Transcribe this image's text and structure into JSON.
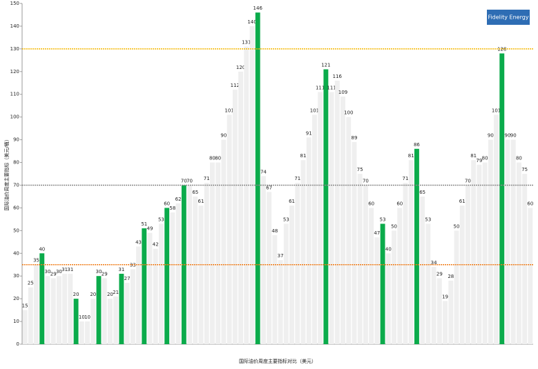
{
  "chart_data": {
    "type": "bar",
    "x_label": "国际油价周度主要指标对比（美元）",
    "y_label": "国际油价周度主要指标（美元/桶）",
    "logo": "Fidelity Energy",
    "ylim": [
      0,
      150
    ],
    "yticks": [
      0,
      10,
      20,
      30,
      40,
      50,
      60,
      70,
      80,
      90,
      100,
      110,
      120,
      130,
      140,
      150
    ],
    "reference_lines": [
      {
        "value": 35,
        "color": "#f07d1a"
      },
      {
        "value": 70,
        "color": "#8a8a8a"
      },
      {
        "value": 130,
        "color": "#f5b800"
      }
    ],
    "categories": [
      null,
      null,
      null,
      null,
      null,
      null,
      null,
      null,
      null,
      null,
      null,
      null,
      null,
      null,
      null,
      null,
      null,
      null,
      null,
      null,
      null,
      null,
      null,
      null,
      null,
      null,
      null,
      null,
      null,
      null,
      null,
      null,
      null,
      null,
      null,
      null,
      null,
      null,
      null,
      null,
      null,
      null,
      null,
      null,
      null,
      null,
      null,
      null,
      null,
      null,
      null,
      null,
      null,
      null,
      null,
      null,
      null,
      null,
      null,
      null,
      null,
      null,
      null,
      null,
      null,
      null,
      null,
      null,
      null,
      null,
      null,
      null,
      null,
      null,
      null,
      null,
      null,
      null,
      null,
      null,
      null,
      null,
      null,
      null,
      null,
      null,
      null,
      null,
      null,
      null
    ],
    "values": [
      15,
      25,
      35,
      40,
      30,
      29,
      30,
      31,
      31,
      20,
      10,
      10,
      20,
      30,
      29,
      20,
      21,
      31,
      27,
      33,
      43,
      51,
      49,
      42,
      53,
      60,
      58,
      62,
      70,
      70,
      65,
      61,
      71,
      80,
      80,
      90,
      101,
      112,
      120,
      131,
      140,
      146,
      74,
      67,
      48,
      37,
      53,
      61,
      71,
      81,
      91,
      101,
      111,
      121,
      111,
      116,
      109,
      100,
      89,
      75,
      70,
      60,
      47,
      53,
      40,
      50,
      60,
      71,
      81,
      86,
      65,
      53,
      34,
      29,
      19,
      28,
      50,
      61,
      70,
      81,
      79,
      80,
      90,
      101,
      128,
      90,
      90,
      80,
      75,
      60
    ],
    "colors": [
      "#efefef",
      "#efefef",
      "#efefef",
      "#0bab4b",
      "#efefef",
      "#efefef",
      "#efefef",
      "#efefef",
      "#efefef",
      "#0bab4b",
      "#efefef",
      "#efefef",
      "#efefef",
      "#0bab4b",
      "#efefef",
      "#efefef",
      "#efefef",
      "#0bab4b",
      "#efefef",
      "#efefef",
      "#efefef",
      "#0bab4b",
      "#efefef",
      "#efefef",
      "#efefef",
      "#0bab4b",
      "#efefef",
      "#efefef",
      "#0bab4b",
      "#efefef",
      "#efefef",
      "#efefef",
      "#efefef",
      "#efefef",
      "#efefef",
      "#efefef",
      "#efefef",
      "#efefef",
      "#efefef",
      "#efefef",
      "#efefef",
      "#0bab4b",
      "#efefef",
      "#efefef",
      "#efefef",
      "#efefef",
      "#efefef",
      "#efefef",
      "#efefef",
      "#efefef",
      "#efefef",
      "#efefef",
      "#efefef",
      "#0bab4b",
      "#efefef",
      "#efefef",
      "#efefef",
      "#efefef",
      "#efefef",
      "#efefef",
      "#efefef",
      "#efefef",
      "#efefef",
      "#0bab4b",
      "#efefef",
      "#efefef",
      "#efefef",
      "#efefef",
      "#efefef",
      "#0bab4b",
      "#efefef",
      "#efefef",
      "#efefef",
      "#efefef",
      "#efefef",
      "#efefef",
      "#efefef",
      "#efefef",
      "#efefef",
      "#efefef",
      "#efefef",
      "#efefef",
      "#efefef",
      "#efefef",
      "#0bab4b",
      "#efefef",
      "#efefef",
      "#efefef",
      "#efefef",
      "#efefef"
    ]
  }
}
